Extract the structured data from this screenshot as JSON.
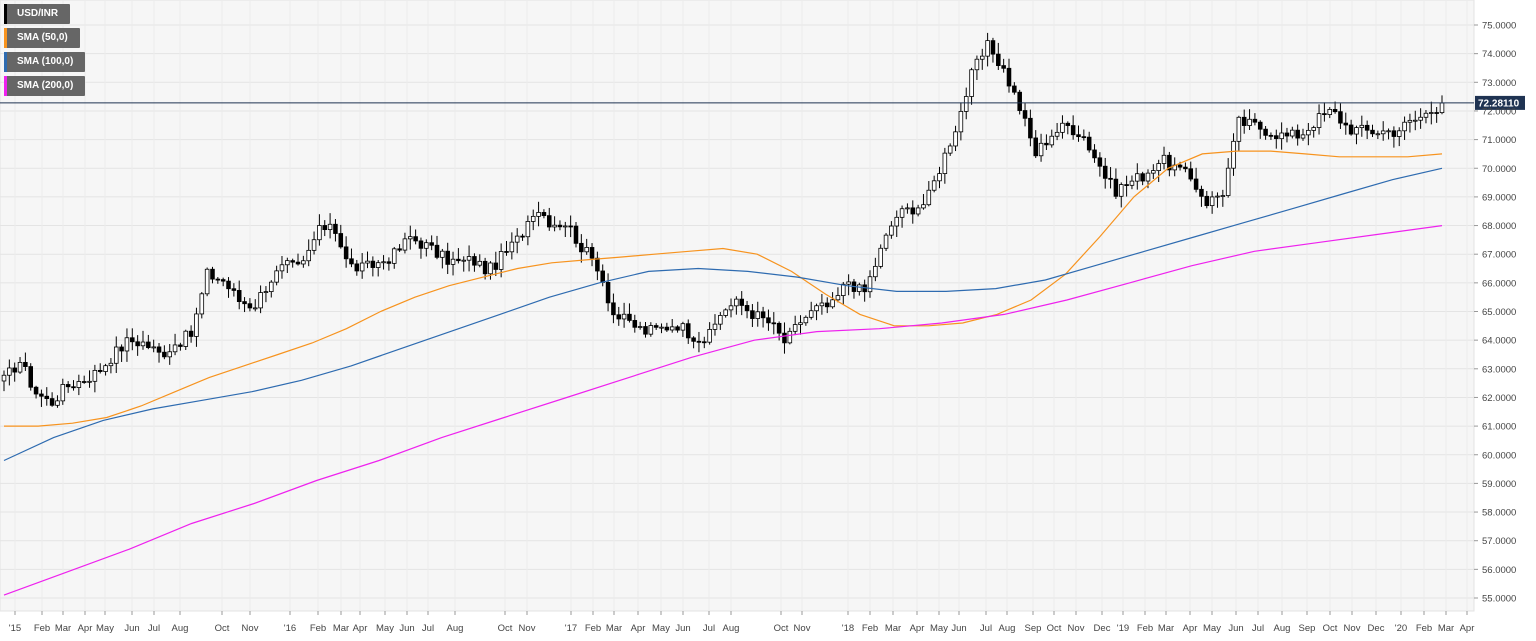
{
  "chart_data": {
    "type": "candlestick",
    "symbol": "USD/INR",
    "ylim": [
      54.5,
      75.5
    ],
    "y_ticks": [
      "55.0000",
      "56.0000",
      "57.0000",
      "58.0000",
      "59.0000",
      "60.0000",
      "61.0000",
      "62.0000",
      "63.0000",
      "64.0000",
      "65.0000",
      "66.0000",
      "67.0000",
      "68.0000",
      "69.0000",
      "70.0000",
      "71.0000",
      "72.0000",
      "73.0000",
      "74.0000",
      "75.0000"
    ],
    "x_ticks": [
      "'15",
      "Feb",
      "Mar",
      "Apr",
      "May",
      "Jun",
      "Jul",
      "Aug",
      "Oct",
      "Nov",
      "'16",
      "Feb",
      "Mar",
      "Apr",
      "May",
      "Jun",
      "Jul",
      "Aug",
      "Oct",
      "Nov",
      "'17",
      "Feb",
      "Mar",
      "Apr",
      "May",
      "Jun",
      "Jul",
      "Aug",
      "Oct",
      "Nov",
      "'18",
      "Feb",
      "Mar",
      "Apr",
      "May",
      "Jun",
      "Jul",
      "Aug",
      "Sep",
      "Oct",
      "Nov",
      "Dec",
      "'19",
      "Feb",
      "Mar",
      "Apr",
      "May",
      "Jun",
      "Jul",
      "Aug",
      "Sep",
      "Oct",
      "Nov",
      "Dec",
      "'20",
      "Feb",
      "Mar",
      "Apr"
    ],
    "current_price": "72.28110",
    "current_value": 72.2811,
    "close_series": [
      62.6,
      63.3,
      62.2,
      61.8,
      62.4,
      62.6,
      62.9,
      63.5,
      64.0,
      63.9,
      63.5,
      63.9,
      64.2,
      66.3,
      66.1,
      65.4,
      65.2,
      66.1,
      66.6,
      66.5,
      67.7,
      68.2,
      66.6,
      66.5,
      66.7,
      67.0,
      67.6,
      67.3,
      66.9,
      66.7,
      66.8,
      66.4,
      67.0,
      67.6,
      68.7,
      68.1,
      68.1,
      67.2,
      66.6,
      64.9,
      64.6,
      64.3,
      64.4,
      64.6,
      64.2,
      64.0,
      65.1,
      65.3,
      64.9,
      64.6,
      63.9,
      64.7,
      65.1,
      65.2,
      66.1,
      65.6,
      67.0,
      68.3,
      68.6,
      68.8,
      70.2,
      71.6,
      73.4,
      74.3,
      73.4,
      72.1,
      70.5,
      71.2,
      71.5,
      71.2,
      70.2,
      69.2,
      69.5,
      69.8,
      70.3,
      70.0,
      69.6,
      68.8,
      69.2,
      71.6,
      71.5,
      71.3,
      71.1,
      71.2,
      71.7,
      72.0,
      71.4,
      71.3,
      71.3,
      71.3,
      71.6,
      71.9,
      72.28
    ],
    "series": [
      {
        "name": "SMA (50,0)",
        "color": "#f7931e",
        "values": [
          61.0,
          61.0,
          61.1,
          61.3,
          61.7,
          62.2,
          62.7,
          63.1,
          63.5,
          63.9,
          64.4,
          65.0,
          65.5,
          65.9,
          66.2,
          66.5,
          66.7,
          66.8,
          66.9,
          67.0,
          67.1,
          67.2,
          67.0,
          66.4,
          65.6,
          64.9,
          64.5,
          64.5,
          64.6,
          64.9,
          65.4,
          66.3,
          67.6,
          69.0,
          70.0,
          70.5,
          70.6,
          70.6,
          70.5,
          70.4,
          70.4,
          70.4,
          70.5
        ]
      },
      {
        "name": "SMA (100,0)",
        "color": "#2e6bb0",
        "values": [
          59.8,
          60.6,
          61.2,
          61.6,
          61.9,
          62.2,
          62.6,
          63.1,
          63.7,
          64.3,
          64.9,
          65.5,
          66.0,
          66.4,
          66.5,
          66.4,
          66.2,
          65.9,
          65.7,
          65.7,
          65.8,
          66.1,
          66.6,
          67.1,
          67.6,
          68.1,
          68.6,
          69.1,
          69.6,
          70.0
        ]
      },
      {
        "name": "SMA (200,0)",
        "color": "#ee22ee",
        "values": [
          55.1,
          55.9,
          56.7,
          57.6,
          58.3,
          59.1,
          59.8,
          60.6,
          61.3,
          62.0,
          62.7,
          63.4,
          64.0,
          64.3,
          64.4,
          64.6,
          64.9,
          65.4,
          66.0,
          66.6,
          67.1,
          67.4,
          67.7,
          68.0
        ]
      }
    ]
  },
  "legend": {
    "symbol": "USD/INR",
    "sma50": "SMA (50,0)",
    "sma100": "SMA (100,0)",
    "sma200": "SMA (200,0)"
  },
  "colors": {
    "sma50": "#f7931e",
    "sma100": "#2e6bb0",
    "sma200": "#ee22ee",
    "price_line": "#1f3352",
    "price_tag": "#1f3352"
  }
}
